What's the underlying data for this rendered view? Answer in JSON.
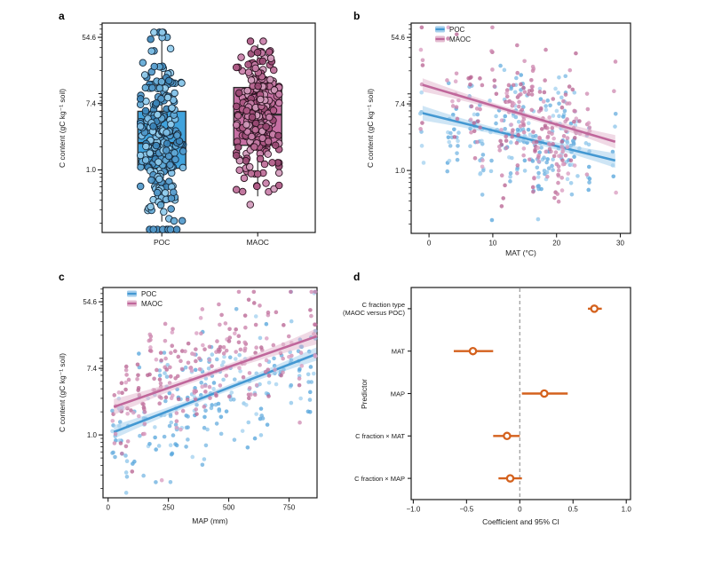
{
  "figure": {
    "background": "#ffffff",
    "panel_letters": {
      "a": "a",
      "b": "b",
      "c": "c",
      "d": "d"
    }
  },
  "colors": {
    "axis": "#1a1a1a",
    "box_stroke": "#2e2e2e",
    "whisker": "#3a3a3a",
    "poc_box": "#41a3dd",
    "poc_point_palette": [
      "#7fc0e8",
      "#5199cb",
      "#3c86ba",
      "#93cdee",
      "#62a9d6"
    ],
    "poc_point_edge": "#16293a",
    "poc_line": "#4398d2",
    "poc_band": "#a6cfec",
    "poc_scatter_palette": [
      "#7cbae4",
      "#58a6dc",
      "#90c6ea",
      "#6bb0df",
      "#a5d2f0"
    ],
    "maoc_box": "#c66fa3",
    "maoc_point_palette": [
      "#b05a87",
      "#c97fa9",
      "#9a4a74",
      "#d39bbc",
      "#bd6d97"
    ],
    "maoc_point_edge": "#2a121f",
    "maoc_line": "#c0679b",
    "maoc_band": "#e3bad0",
    "maoc_scatter_palette": [
      "#d08db3",
      "#c2739f",
      "#da9ec1",
      "#b96593",
      "#cb81aa"
    ],
    "orange": "#d4611d",
    "zero_dash": "#999999"
  },
  "chart_data": [
    {
      "id": "a",
      "type": "box",
      "ylabel": "C content (gC kg⁻¹ soil)",
      "ylim_ln": [
        -1.89,
        4.43
      ],
      "yticks": [
        {
          "v": 54.6,
          "label": "54.6"
        },
        {
          "v": 7.4,
          "label": "7.4"
        },
        {
          "v": 1.0,
          "label": "1.0"
        }
      ],
      "categories": [
        "POC",
        "MAOC"
      ],
      "boxes": [
        {
          "name": "POC",
          "center": 0.28,
          "q1": 1.05,
          "median": 2.25,
          "q3": 5.85,
          "whisker_low": 0.21,
          "whisker_high": 58,
          "n_points": 265,
          "seed": 7,
          "cloud_ln_mean": 0.85,
          "cloud_ln_sd": 1.3,
          "cloud_ln_clip": [
            -1.8,
            4.15
          ]
        },
        {
          "name": "MAOC",
          "center": 0.73,
          "q1": 2.1,
          "median": 5.3,
          "q3": 12.0,
          "whisker_low": 0.45,
          "whisker_high": 44,
          "n_points": 265,
          "seed": 13,
          "cloud_ln_mean": 1.62,
          "cloud_ln_sd": 1.05,
          "cloud_ln_clip": [
            -1.05,
            3.88
          ]
        }
      ]
    },
    {
      "id": "b",
      "type": "scatter",
      "xlabel": "MAT (°C)",
      "ylabel": "C content (gC kg⁻¹ soil)",
      "xlim": [
        -2.8,
        31.6
      ],
      "xticks": [
        {
          "v": 0,
          "label": "0"
        },
        {
          "v": 10,
          "label": "10"
        },
        {
          "v": 20,
          "label": "20"
        },
        {
          "v": 30,
          "label": "30"
        }
      ],
      "ylim_ln": [
        -1.89,
        4.43
      ],
      "yticks": [
        {
          "v": 54.6,
          "label": "54.6"
        },
        {
          "v": 7.4,
          "label": "7.4"
        },
        {
          "v": 1.0,
          "label": "1.0"
        }
      ],
      "legend": [
        "POC",
        "MAOC"
      ],
      "sites": [
        -1.1,
        3.1,
        3.8,
        4.4,
        6.5,
        7.1,
        7.8,
        8.3,
        9.7,
        10.4,
        11.2,
        11.9,
        12.4,
        13.0,
        13.6,
        14.1,
        14.6,
        15.1,
        15.6,
        16.1,
        16.6,
        17.1,
        17.6,
        18.1,
        18.6,
        19.1,
        19.6,
        20.1,
        20.6,
        21.1,
        21.7,
        22.3,
        22.9,
        23.5,
        24.9,
        29.1
      ],
      "site_jitter": 0.3,
      "series": [
        {
          "name": "POC",
          "seed": 21,
          "line": {
            "x": [
              -1.0,
              29.2
            ],
            "y": [
              5.6,
              1.35
            ]
          },
          "band_halfwidth_ln": {
            "mid": 0.09,
            "end": 0.22
          },
          "scatter_sd_ln": 0.8,
          "site_sd_ln": 0.55
        },
        {
          "name": "MAOC",
          "seed": 22,
          "line": {
            "x": [
              -1.0,
              29.2
            ],
            "y": [
              13.1,
              2.37
            ]
          },
          "band_halfwidth_ln": {
            "mid": 0.08,
            "end": 0.2
          },
          "scatter_sd_ln": 0.8,
          "site_sd_ln": 0.5
        }
      ]
    },
    {
      "id": "c",
      "type": "scatter",
      "xlabel": "MAP (mm)",
      "ylabel": "C content (gC kg⁻¹ soil)",
      "xlim": [
        -21,
        866
      ],
      "xticks": [
        {
          "v": 0,
          "label": "0"
        },
        {
          "v": 250,
          "label": "250"
        },
        {
          "v": 500,
          "label": "500"
        },
        {
          "v": 750,
          "label": "750"
        }
      ],
      "ylim_ln": [
        -1.89,
        4.43
      ],
      "yticks": [
        {
          "v": 54.6,
          "label": "54.6"
        },
        {
          "v": 7.4,
          "label": "7.4"
        },
        {
          "v": 1.0,
          "label": "1.0"
        }
      ],
      "legend": [
        "POC",
        "MAOC"
      ],
      "sites": [
        25,
        52,
        78,
        102,
        128,
        150,
        172,
        195,
        218,
        240,
        262,
        285,
        305,
        325,
        345,
        365,
        385,
        405,
        425,
        445,
        465,
        485,
        505,
        525,
        545,
        565,
        585,
        610,
        635,
        660,
        690,
        720,
        755,
        795,
        835,
        858
      ],
      "site_jitter": 8,
      "series": [
        {
          "name": "POC",
          "seed": 31,
          "line": {
            "x": [
              24,
              864
            ],
            "y": [
              1.09,
              11.4
            ]
          },
          "band_halfwidth_ln": {
            "mid": 0.09,
            "end": 0.2
          },
          "scatter_sd_ln": 0.82,
          "site_sd_ln": 0.5
        },
        {
          "name": "MAOC",
          "seed": 32,
          "line": {
            "x": [
              24,
              864
            ],
            "y": [
              2.32,
              19.3
            ]
          },
          "band_halfwidth_ln": {
            "mid": 0.09,
            "end": 0.24
          },
          "scatter_sd_ln": 0.78,
          "site_sd_ln": 0.48
        }
      ]
    },
    {
      "id": "d",
      "type": "interval",
      "xlabel": "Coefficient and 95% CI",
      "ylabel": "Predictor",
      "xlim": [
        -1.02,
        1.04
      ],
      "xticks": [
        {
          "v": -1.0,
          "label": "−1.0"
        },
        {
          "v": -0.5,
          "label": "−0.5"
        },
        {
          "v": 0,
          "label": "0"
        },
        {
          "v": 0.5,
          "label": "0.5"
        },
        {
          "v": 1.0,
          "label": "1.0"
        }
      ],
      "zero_line": 0,
      "rows": [
        {
          "label_lines": [
            "C fraction type",
            "(MAOC versus POC)"
          ],
          "estimate": 0.7,
          "ci_low": 0.64,
          "ci_high": 0.77
        },
        {
          "label_lines": [
            "MAT"
          ],
          "estimate": -0.44,
          "ci_low": -0.62,
          "ci_high": -0.25
        },
        {
          "label_lines": [
            "MAP"
          ],
          "estimate": 0.23,
          "ci_low": 0.02,
          "ci_high": 0.45
        },
        {
          "label_lines": [
            "C fraction × MAT"
          ],
          "estimate": -0.12,
          "ci_low": -0.25,
          "ci_high": 0.0
        },
        {
          "label_lines": [
            "C fraction × MAP"
          ],
          "estimate": -0.09,
          "ci_low": -0.2,
          "ci_high": 0.02
        }
      ]
    }
  ]
}
